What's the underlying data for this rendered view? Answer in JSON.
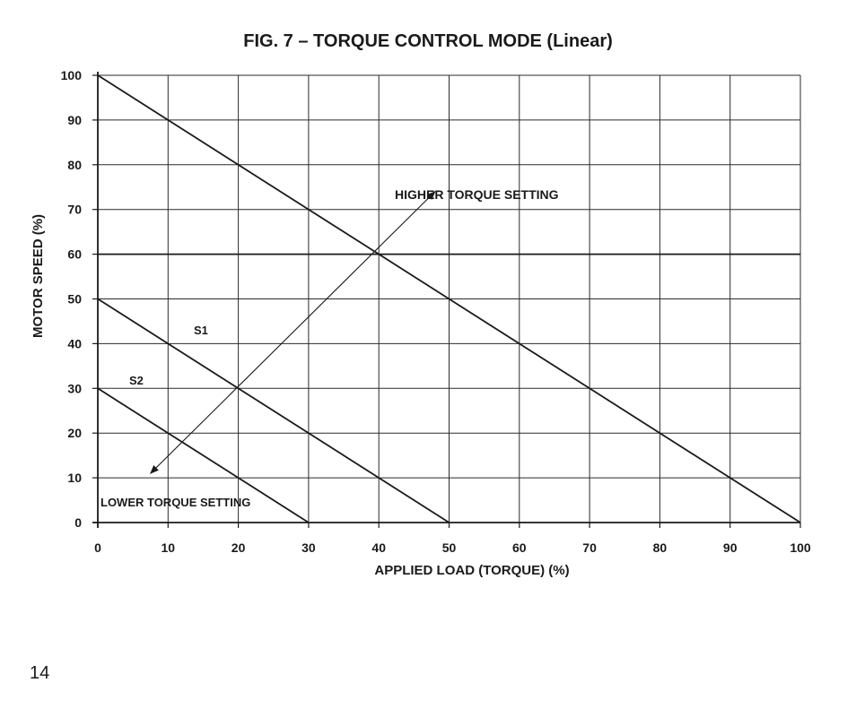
{
  "chart_data": {
    "type": "line",
    "title": "FIG. 7 – TORQUE CONTROL MODE (Linear)",
    "xlabel": "APPLIED LOAD (TORQUE) (%)",
    "ylabel": "MOTOR SPEED (%)",
    "xlim": [
      0,
      100
    ],
    "ylim": [
      0,
      100
    ],
    "xticks": [
      0,
      10,
      20,
      30,
      40,
      50,
      60,
      70,
      80,
      90,
      100
    ],
    "yticks": [
      0,
      10,
      20,
      30,
      40,
      50,
      60,
      70,
      80,
      90,
      100
    ],
    "grid": true,
    "series": [
      {
        "values": [
          [
            0,
            100
          ],
          [
            100,
            0
          ]
        ]
      },
      {
        "name": "S1",
        "values": [
          [
            0,
            50
          ],
          [
            50,
            0
          ]
        ]
      },
      {
        "name": "S2",
        "values": [
          [
            0,
            30
          ],
          [
            30,
            0
          ]
        ]
      }
    ],
    "reference_lines": [
      {
        "axis": "y",
        "value": 60
      }
    ],
    "annotations": {
      "higher": "HIGHER TORQUE SETTING",
      "lower": "LOWER TORQUE SETTING",
      "arrow": {
        "from": [
          7.5,
          11
        ],
        "to": [
          48,
          74
        ]
      }
    }
  },
  "page": {
    "number": "14"
  }
}
